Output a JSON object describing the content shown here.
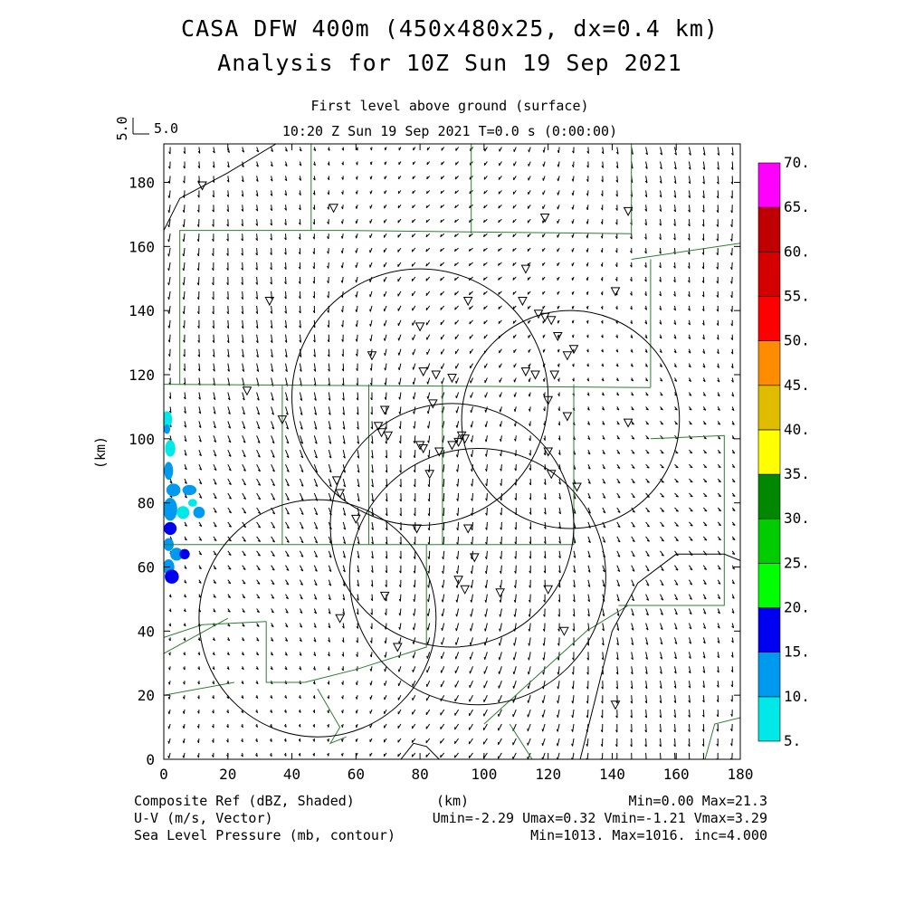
{
  "titles": {
    "line1": "CASA DFW 400m (450x480x25, dx=0.4 km)",
    "line2": "Analysis for 10Z Sun 19 Sep 2021",
    "level": "First level above ground (surface)",
    "time": "10:20 Z Sun 19 Sep 2021    T=0.0 s (0:00:00)",
    "ref_vector_y": "5.0",
    "ref_vector_x": "5.0"
  },
  "axes": {
    "xlabel": "(km)",
    "ylabel": "(km)",
    "xlim": [
      0,
      180
    ],
    "ylim": [
      0,
      192
    ],
    "xticks": [
      "0",
      "20",
      "40",
      "60",
      "80",
      "100",
      "120",
      "140",
      "160",
      "180"
    ],
    "yticks": [
      "0",
      "20",
      "40",
      "60",
      "80",
      "100",
      "120",
      "140",
      "160",
      "180"
    ]
  },
  "colorbar": {
    "labels": [
      "5.",
      "10.",
      "15.",
      "20.",
      "25.",
      "30.",
      "35.",
      "40.",
      "45.",
      "50.",
      "55.",
      "60.",
      "65.",
      "70."
    ],
    "colors": [
      "#00e8e8",
      "#0099f0",
      "#0000f0",
      "#00ff00",
      "#00cc00",
      "#008800",
      "#ffff00",
      "#e0bc00",
      "#ff8c00",
      "#ff0000",
      "#d40000",
      "#c00000",
      "#ff00ff"
    ]
  },
  "footer": {
    "left1": "Composite Ref (dBZ, Shaded)",
    "left2": "U-V (m/s, Vector)",
    "left3": "Sea Level Pressure (mb, contour)",
    "center1": "(km)",
    "right1": "Min=0.00 Max=21.3",
    "right2": "Umin=-2.29 Umax=0.32 Vmin=-1.21 Vmax=3.29",
    "right3": "Min=1013. Max=1016. inc=4.000"
  },
  "chart_data": {
    "type": "map",
    "fields": {
      "shaded": "Composite Ref (dBZ)",
      "vector": "U-V (m/s)",
      "contour": "Sea Level Pressure (mb)"
    },
    "radar_rings": [
      {
        "center_km": [
          98,
          57
        ],
        "radius_km": 40
      },
      {
        "center_km": [
          127,
          106
        ],
        "radius_km": 34
      },
      {
        "center_km": [
          90,
          73
        ],
        "radius_km": 38
      },
      {
        "center_km": [
          80,
          113
        ],
        "radius_km": 40
      },
      {
        "center_km": [
          48,
          44
        ],
        "radius_km": 37
      }
    ],
    "station_markers_km": [
      [
        12,
        179
      ],
      [
        53,
        172
      ],
      [
        33,
        143
      ],
      [
        145,
        171
      ],
      [
        119,
        169
      ],
      [
        113,
        153
      ],
      [
        95,
        143
      ],
      [
        112,
        143
      ],
      [
        117,
        139
      ],
      [
        121,
        137
      ],
      [
        119,
        138
      ],
      [
        123,
        132
      ],
      [
        128,
        128
      ],
      [
        126,
        126
      ],
      [
        141,
        146
      ],
      [
        80,
        135
      ],
      [
        65,
        126
      ],
      [
        81,
        121
      ],
      [
        85,
        120
      ],
      [
        90,
        119
      ],
      [
        113,
        121
      ],
      [
        116,
        120
      ],
      [
        122,
        120
      ],
      [
        120,
        112
      ],
      [
        126,
        107
      ],
      [
        145,
        105
      ],
      [
        26,
        115
      ],
      [
        37,
        106
      ],
      [
        69,
        109
      ],
      [
        67,
        104
      ],
      [
        68,
        102
      ],
      [
        70,
        101
      ],
      [
        84,
        111
      ],
      [
        80,
        98
      ],
      [
        81,
        97
      ],
      [
        86,
        96
      ],
      [
        90,
        98
      ],
      [
        93,
        101
      ],
      [
        94,
        100
      ],
      [
        92,
        99
      ],
      [
        120,
        96
      ],
      [
        121,
        89
      ],
      [
        129,
        85
      ],
      [
        83,
        89
      ],
      [
        54,
        87
      ],
      [
        55,
        83
      ],
      [
        60,
        75
      ],
      [
        79,
        72
      ],
      [
        95,
        72
      ],
      [
        97,
        63
      ],
      [
        92,
        56
      ],
      [
        94,
        53
      ],
      [
        105,
        52
      ],
      [
        120,
        53
      ],
      [
        69,
        51
      ],
      [
        55,
        44
      ],
      [
        73,
        35
      ],
      [
        125,
        40
      ],
      [
        141,
        17
      ]
    ],
    "pressure_contours": [
      {
        "path_km": [
          [
            0,
            165
          ],
          [
            5,
            175
          ],
          [
            20,
            183
          ],
          [
            35,
            192
          ]
        ]
      },
      {
        "path_km": [
          [
            130,
            0
          ],
          [
            135,
            20
          ],
          [
            140,
            40
          ],
          [
            148,
            55
          ],
          [
            160,
            64
          ],
          [
            175,
            64
          ],
          [
            180,
            62
          ]
        ]
      },
      {
        "path_km": [
          [
            74,
            0
          ],
          [
            78,
            5
          ],
          [
            82,
            4
          ],
          [
            86,
            0
          ]
        ]
      }
    ],
    "reflectivity_echoes": {
      "location": "western edge, x 0-13 km, y 55-110 km",
      "max_dbz": 21.3
    }
  }
}
